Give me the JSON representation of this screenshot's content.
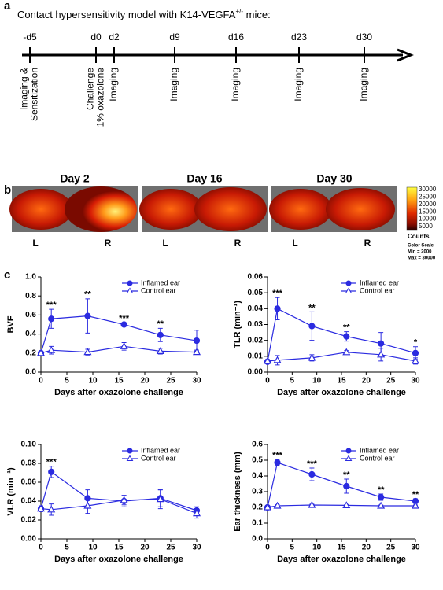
{
  "panel_labels": [
    "a",
    "b",
    "c"
  ],
  "timeline": {
    "title": "Contact hypersensitivity model with K14-VEGFA",
    "title_superscript": "+/-",
    "title_suffix": " mice:",
    "days": [
      "-d5",
      "d0",
      "d2",
      "d9",
      "d16",
      "d23",
      "d30"
    ],
    "events": [
      [
        "Imaging &",
        "Sensitization"
      ],
      [
        "Challenge",
        "1% oxazolone"
      ],
      [
        "Imaging"
      ],
      [
        "Imaging"
      ],
      [
        "Imaging"
      ],
      [
        "Imaging"
      ],
      [
        "Imaging"
      ]
    ]
  },
  "images": {
    "titles": [
      "Day 2",
      "Day 16",
      "Day 30"
    ],
    "sides": [
      "L",
      "R"
    ],
    "colorbar": {
      "tick_labels": [
        "30000",
        "25000",
        "20000",
        "15000",
        "10000",
        "5000"
      ],
      "title": "Counts",
      "notes": [
        "Color Scale",
        "Min = 2000",
        "Max = 30000"
      ]
    }
  },
  "chart_data": [
    {
      "type": "line",
      "xlabel": "Days after oxazolone challenge",
      "ylabel": "BVF",
      "x": [
        0,
        2,
        9,
        16,
        23,
        30
      ],
      "xlim": [
        0,
        30
      ],
      "xticks": [
        0,
        5,
        10,
        15,
        20,
        25,
        30
      ],
      "ylim": [
        0,
        1
      ],
      "yticks": [
        {
          "value": 0,
          "label": "0.0"
        },
        0.2,
        0.4,
        0.6,
        0.8,
        {
          "value": 1,
          "label": "1.0"
        }
      ],
      "legend": "upper right",
      "series": [
        {
          "name": "Inflamed ear",
          "color": "#2b2be0",
          "marker": "circle",
          "filled": true,
          "values": [
            0.2,
            0.56,
            0.59,
            0.5,
            0.39,
            0.33
          ],
          "errors": [
            0.02,
            0.1,
            0.18,
            0.02,
            0.07,
            0.11
          ]
        },
        {
          "name": "Control ear",
          "color": "#2b2be0",
          "marker": "triangle",
          "filled": false,
          "values": [
            0.2,
            0.23,
            0.21,
            0.27,
            0.22,
            0.21
          ],
          "errors": [
            0.02,
            0.04,
            0.03,
            0.04,
            0.03,
            0.02
          ]
        }
      ],
      "annotations": [
        null,
        "***",
        "**",
        "***",
        "**",
        null
      ]
    },
    {
      "type": "line",
      "xlabel": "Days after oxazolone challenge",
      "ylabel": "TLR (min⁻¹)",
      "x": [
        0,
        2,
        9,
        16,
        23,
        30
      ],
      "xlim": [
        0,
        30
      ],
      "xticks": [
        0,
        5,
        10,
        15,
        20,
        25,
        30
      ],
      "ylim": [
        0,
        0.06
      ],
      "yticks": [
        {
          "value": 0,
          "label": "0.00"
        },
        0.01,
        0.02,
        0.03,
        0.04,
        0.05,
        0.06
      ],
      "legend": "upper right",
      "series": [
        {
          "name": "Inflamed ear",
          "color": "#2b2be0",
          "marker": "circle",
          "filled": true,
          "values": [
            0.0065,
            0.04,
            0.029,
            0.0225,
            0.018,
            0.012
          ],
          "errors": [
            0.001,
            0.007,
            0.009,
            0.003,
            0.007,
            0.004
          ]
        },
        {
          "name": "Control ear",
          "color": "#2b2be0",
          "marker": "triangle",
          "filled": false,
          "values": [
            0.007,
            0.0075,
            0.009,
            0.0125,
            0.011,
            0.007
          ],
          "errors": [
            0.001,
            0.003,
            0.002,
            0.001,
            0.004,
            0.002
          ]
        }
      ],
      "annotations": [
        null,
        "***",
        "**",
        "**",
        null,
        "*"
      ]
    },
    {
      "type": "line",
      "xlabel": "Days after oxazolone challenge",
      "ylabel": "VLR (min⁻¹)",
      "x": [
        0,
        2,
        9,
        16,
        23,
        30
      ],
      "xlim": [
        0,
        30
      ],
      "xticks": [
        0,
        5,
        10,
        15,
        20,
        25,
        30
      ],
      "ylim": [
        0,
        0.1
      ],
      "yticks": [
        {
          "value": 0,
          "label": "0.00"
        },
        0.02,
        0.04,
        0.06,
        0.08,
        {
          "value": 0.1,
          "label": "0.10"
        }
      ],
      "legend": "upper right",
      "series": [
        {
          "name": "Inflamed ear",
          "color": "#2b2be0",
          "marker": "circle",
          "filled": true,
          "values": [
            0.032,
            0.071,
            0.043,
            0.04,
            0.043,
            0.03
          ],
          "errors": [
            0.003,
            0.006,
            0.009,
            0.006,
            0.009,
            0.004
          ]
        },
        {
          "name": "Control ear",
          "color": "#2b2be0",
          "marker": "triangle",
          "filled": false,
          "values": [
            0.032,
            0.031,
            0.035,
            0.041,
            0.042,
            0.027
          ],
          "errors": [
            0.003,
            0.006,
            0.008,
            0.005,
            0.01,
            0.005
          ]
        }
      ],
      "annotations": [
        null,
        "***",
        null,
        null,
        null,
        null
      ]
    },
    {
      "type": "line",
      "xlabel": "Days after oxazolone challenge",
      "ylabel": "Ear thickness (mm)",
      "x": [
        0,
        2,
        9,
        16,
        23,
        30
      ],
      "xlim": [
        0,
        30
      ],
      "xticks": [
        0,
        5,
        10,
        15,
        20,
        25,
        30
      ],
      "ylim": [
        0,
        0.6
      ],
      "yticks": [
        {
          "value": 0,
          "label": "0.0"
        },
        0.1,
        0.2,
        0.3,
        0.4,
        0.5,
        0.6
      ],
      "legend": "upper right",
      "series": [
        {
          "name": "Inflamed ear",
          "color": "#2b2be0",
          "marker": "circle",
          "filled": true,
          "values": [
            0.2,
            0.485,
            0.41,
            0.335,
            0.265,
            0.24
          ],
          "errors": [
            0.005,
            0.02,
            0.04,
            0.045,
            0.02,
            0.015
          ]
        },
        {
          "name": "Control ear",
          "color": "#2b2be0",
          "marker": "triangle",
          "filled": false,
          "values": [
            0.2,
            0.21,
            0.215,
            0.213,
            0.21,
            0.21
          ],
          "errors": [
            0.005,
            0.007,
            0.005,
            0.004,
            0.005,
            0.005
          ]
        }
      ],
      "annotations": [
        null,
        "***",
        "***",
        "**",
        "**",
        "**"
      ]
    }
  ]
}
